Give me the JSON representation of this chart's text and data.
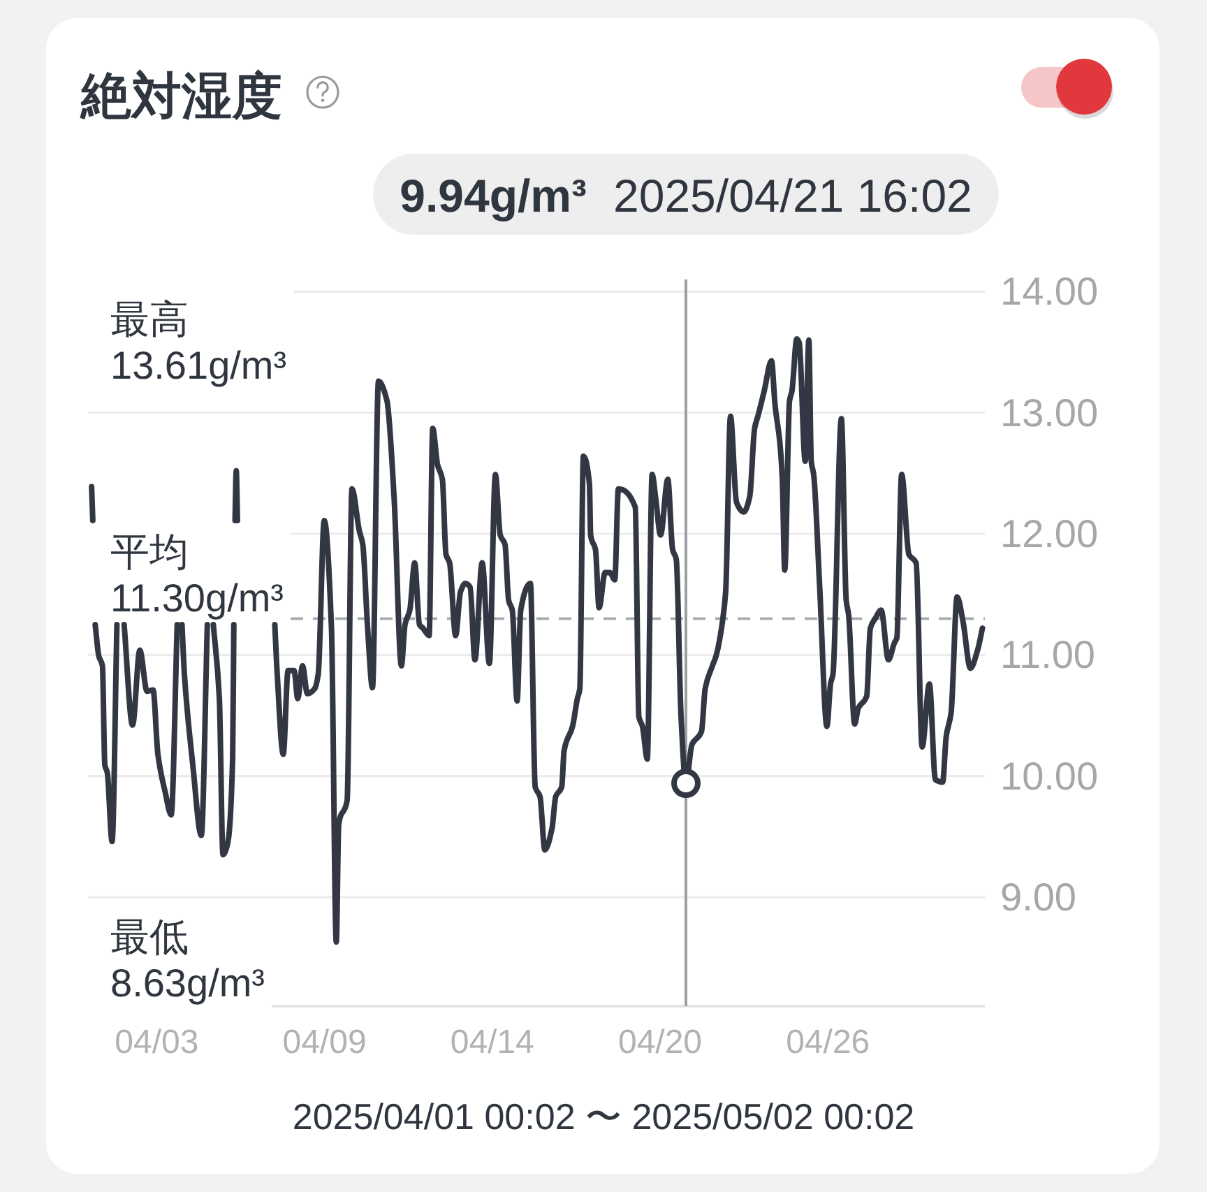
{
  "chart_data": {
    "type": "line",
    "title": "絶対湿度",
    "xlabel": "2025/04/01 00:02 〜 2025/05/02 00:02",
    "series": [
      {
        "color": "#323743",
        "x": [
          "2025-04-01T03:00",
          "2025-04-01T04:00"
        ],
        "values": [
          12.39,
          12.11
        ]
      },
      {
        "color": "#323743",
        "x": [
          "2025-04-01T06:00",
          "2025-04-01T09:00",
          "2025-04-01T12:00",
          "2025-04-01T14:00",
          "2025-04-01T16:00",
          "2025-04-01T20:00",
          "2025-04-02T00:00"
        ],
        "values": [
          11.25,
          10.99,
          10.91,
          10.09,
          10.03,
          9.46,
          11.25
        ]
      },
      {
        "color": "#323743",
        "x": [
          "2025-04-02T06:00",
          "2025-04-02T13:00",
          "2025-04-02T19:00",
          "2025-04-03T01:00",
          "2025-04-03T06:00",
          "2025-04-03T10:00",
          "2025-04-03T16:00",
          "2025-04-03T21:00",
          "2025-04-04T02:00"
        ],
        "values": [
          11.25,
          10.42,
          11.04,
          10.7,
          10.71,
          10.18,
          9.87,
          9.68,
          11.25
        ]
      },
      {
        "color": "#323743",
        "x": [
          "2025-04-04T06:00",
          "2025-04-04T08:00",
          "2025-04-04T15:00",
          "2025-04-04T22:00",
          "2025-04-05T03:00"
        ],
        "values": [
          11.25,
          10.84,
          10.09,
          9.51,
          11.25
        ]
      },
      {
        "color": "#323743",
        "x": [
          "2025-04-05T08:00",
          "2025-04-05T13:00",
          "2025-04-05T16:00",
          "2025-04-05T20:00",
          "2025-04-06T00:00",
          "2025-04-06T01:00"
        ],
        "values": [
          11.25,
          10.64,
          9.35,
          9.45,
          10.14,
          11.25
        ]
      },
      {
        "color": "#323743",
        "x": [
          "2025-04-06T02:00",
          "2025-04-06T03:00",
          "2025-04-06T04:00"
        ],
        "values": [
          12.11,
          12.52,
          12.11
        ]
      },
      {
        "color": "#323743",
        "x": [
          "2025-04-07T11:00",
          "2025-04-07T13:00",
          "2025-04-07T18:00",
          "2025-04-07T22:00",
          "2025-04-08T03:00",
          "2025-04-08T06:00",
          "2025-04-08T10:00",
          "2025-04-08T14:00",
          "2025-04-08T20:00",
          "2025-04-08T23:00",
          "2025-04-09T04:00",
          "2025-04-09T10:00",
          "2025-04-09T14:00",
          "2025-04-09T16:00",
          "2025-04-09T23:00",
          "2025-04-10T03:00",
          "2025-04-10T09:00",
          "2025-04-10T12:00",
          "2025-04-10T16:00",
          "2025-04-10T20:00",
          "2025-04-11T01:00",
          "2025-04-11T08:00",
          "2025-04-11T14:00",
          "2025-04-11T20:00",
          "2025-04-11T23:00",
          "2025-04-12T03:00",
          "2025-04-12T07:00",
          "2025-04-12T11:00",
          "2025-04-12T14:00",
          "2025-04-12T19:00",
          "2025-04-12T22:00",
          "2025-04-13T02:00",
          "2025-04-13T06:00",
          "2025-04-13T09:00",
          "2025-04-13T12:00",
          "2025-04-13T17:00",
          "2025-04-13T21:00",
          "2025-04-14T01:00",
          "2025-04-14T05:00",
          "2025-04-14T09:00",
          "2025-04-14T15:00",
          "2025-04-14T21:00",
          "2025-04-15T02:00",
          "2025-04-15T06:00",
          "2025-04-15T10:00",
          "2025-04-15T13:00",
          "2025-04-15T16:00",
          "2025-04-15T20:00",
          "2025-04-15T23:00",
          "2025-04-16T07:00",
          "2025-04-16T11:00",
          "2025-04-16T15:00",
          "2025-04-16T19:00",
          "2025-04-17T01:00",
          "2025-04-17T04:00",
          "2025-04-17T09:00",
          "2025-04-17T11:00",
          "2025-04-17T18:00",
          "2025-04-17T22:00",
          "2025-04-18T00:00",
          "2025-04-18T03:00",
          "2025-04-18T08:00",
          "2025-04-18T09:00",
          "2025-04-18T13:00",
          "2025-04-18T16:00",
          "2025-04-18T21:00",
          "2025-04-19T01:00",
          "2025-04-19T05:00",
          "2025-04-19T08:00",
          "2025-04-19T22:00",
          "2025-04-20T01:00",
          "2025-04-20T04:00",
          "2025-04-20T08:00",
          "2025-04-20T12:00",
          "2025-04-20T15:00",
          "2025-04-20T19:00",
          "2025-04-21T01:00",
          "2025-04-21T05:00",
          "2025-04-21T08:00",
          "2025-04-21T12:00",
          "2025-04-21T16:02",
          "2025-04-21T21:00",
          "2025-04-22T05:00",
          "2025-04-22T08:00",
          "2025-04-22T14:00",
          "2025-04-22T17:00",
          "2025-04-22T22:00",
          "2025-04-23T01:00",
          "2025-04-23T05:00",
          "2025-04-23T10:00",
          "2025-04-23T16:00",
          "2025-04-23T21:00",
          "2025-04-24T01:00",
          "2025-04-24T04:00",
          "2025-04-24T09:00",
          "2025-04-24T15:00",
          "2025-04-24T18:00",
          "2025-04-24T22:00",
          "2025-04-25T00:00",
          "2025-04-25T02:00",
          "2025-04-25T06:00",
          "2025-04-25T08:00",
          "2025-04-25T12:00",
          "2025-04-25T14:00",
          "2025-04-25T19:00",
          "2025-04-25T22:00",
          "2025-04-26T00:00",
          "2025-04-26T02:00",
          "2025-04-26T07:00",
          "2025-04-26T13:00",
          "2025-04-26T16:00",
          "2025-04-26T18:00",
          "2025-04-27T01:00",
          "2025-04-27T05:00",
          "2025-04-27T07:00",
          "2025-04-27T12:00",
          "2025-04-27T15:00",
          "2025-04-27T22:00",
          "2025-04-28T01:00",
          "2025-04-28T05:00",
          "2025-04-28T10:00",
          "2025-04-28T16:00",
          "2025-04-28T21:00",
          "2025-04-28T23:00",
          "2025-04-29T03:00",
          "2025-04-29T09:00",
          "2025-04-29T15:00",
          "2025-04-29T20:00",
          "2025-04-30T02:00",
          "2025-04-30T07:00",
          "2025-04-30T13:00",
          "2025-04-30T16:00",
          "2025-04-30T20:00",
          "2025-05-01T01:00",
          "2025-05-01T06:00",
          "2025-05-01T12:00",
          "2025-05-01T18:00",
          "2025-05-01T22:00"
        ],
        "values": [
          11.25,
          10.84,
          10.18,
          10.87,
          10.87,
          10.64,
          10.91,
          10.68,
          10.72,
          10.84,
          12.11,
          11.22,
          8.63,
          9.6,
          9.8,
          12.37,
          12.03,
          11.91,
          11.22,
          10.73,
          13.26,
          13.1,
          12.29,
          10.91,
          11.25,
          11.37,
          11.76,
          11.25,
          11.22,
          11.16,
          12.87,
          12.57,
          12.45,
          11.83,
          11.76,
          11.16,
          11.52,
          11.59,
          11.56,
          10.96,
          11.76,
          10.93,
          12.49,
          11.99,
          11.91,
          11.45,
          11.37,
          10.62,
          11.37,
          11.59,
          9.91,
          9.83,
          9.39,
          9.57,
          9.83,
          9.91,
          10.21,
          10.41,
          10.64,
          10.72,
          12.64,
          12.41,
          11.99,
          11.87,
          11.39,
          11.68,
          11.68,
          11.62,
          12.37,
          12.22,
          10.49,
          10.41,
          10.14,
          12.49,
          12.29,
          11.99,
          12.45,
          11.87,
          11.79,
          10.49,
          9.94,
          10.26,
          10.37,
          10.72,
          10.91,
          10.99,
          11.25,
          11.52,
          12.97,
          12.26,
          12.18,
          12.31,
          12.87,
          12.98,
          13.18,
          13.43,
          13.06,
          12.75,
          12.45,
          11.7,
          13.1,
          13.18,
          13.61,
          13.58,
          12.6,
          13.6,
          12.6,
          12.49,
          11.56,
          10.41,
          10.76,
          10.84,
          12.95,
          11.45,
          11.33,
          10.43,
          10.56,
          10.66,
          11.22,
          11.3,
          11.37,
          10.96,
          11.1,
          11.14,
          12.49,
          11.83,
          11.76,
          10.24,
          10.76,
          9.97,
          9.95,
          10.33,
          10.52,
          11.48,
          11.27,
          10.89,
          11.04,
          11.22
        ]
      },
      {
        "type": "scatter",
        "color": "#323743",
        "x": [
          "2025-04-21T16:02"
        ],
        "values": [
          9.94
        ]
      }
    ],
    "xlim": [
      "2025-04-01T00:02",
      "2025-05-02T00:02"
    ],
    "xticks": [
      {
        "value": "2025-04-03T09:00",
        "label": "04/03"
      },
      {
        "value": "2025-04-09T04:12",
        "label": "04/09"
      },
      {
        "value": "2025-04-14T23:24",
        "label": "04/14"
      },
      {
        "value": "2025-04-20T18:36",
        "label": "04/20"
      },
      {
        "value": "2025-04-26T13:48",
        "label": "04/26"
      }
    ],
    "ylim": [
      8.1,
      14.1
    ],
    "yticks": [
      {
        "value": 9,
        "label": "9.00"
      },
      {
        "value": 10,
        "label": "10.00"
      },
      {
        "value": 11,
        "label": "11.00"
      },
      {
        "value": 12,
        "label": "12.00"
      },
      {
        "value": 13,
        "label": "13.00"
      },
      {
        "value": 14,
        "label": "14.00"
      }
    ],
    "grid": "y",
    "ref_lines": [
      {
        "axis": "y",
        "value": 11.3,
        "label": "平均\n11.30g/m³",
        "color": "#a9abae",
        "line_style": "dashed"
      },
      {
        "axis": "x",
        "value": "2025-04-21T16:02",
        "label": "2025/04/21 16:02",
        "color": "#9d9fa2"
      }
    ],
    "annotations": [
      "9.94g/m³",
      "最高\n13.61g/m³",
      "最低\n8.63g/m³"
    ]
  }
}
